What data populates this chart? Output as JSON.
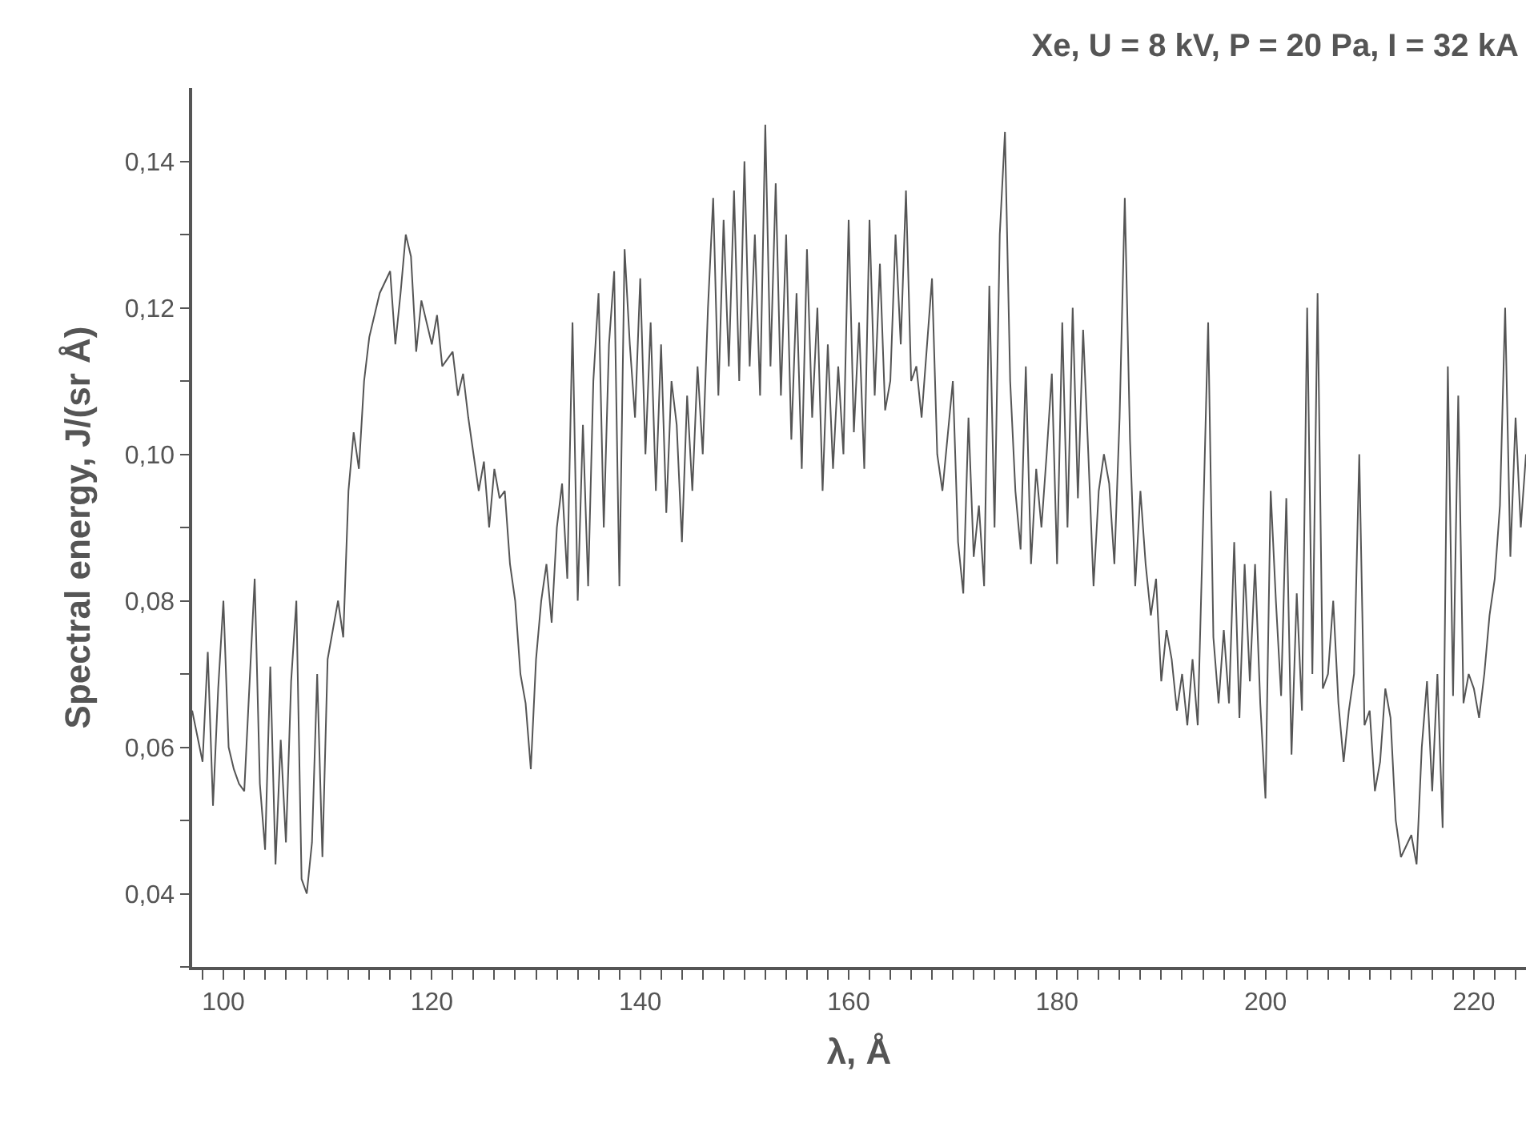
{
  "chart_data": {
    "type": "line",
    "title": "Xe, U = 8 kV, P = 20 Pa, I = 32 kA",
    "xlabel": "λ, Å",
    "ylabel": "Spectral energy, J/(sr Å)",
    "xlim": [
      97,
      225
    ],
    "ylim": [
      0.03,
      0.15
    ],
    "xticks": [
      {
        "value": 98,
        "label": null
      },
      100,
      {
        "value": 102,
        "label": null
      },
      {
        "value": 104,
        "label": null
      },
      {
        "value": 106,
        "label": null
      },
      {
        "value": 108,
        "label": null
      },
      {
        "value": 110,
        "label": null
      },
      {
        "value": 112,
        "label": null
      },
      {
        "value": 114,
        "label": null
      },
      {
        "value": 116,
        "label": null
      },
      {
        "value": 118,
        "label": null
      },
      120,
      {
        "value": 122,
        "label": null
      },
      {
        "value": 124,
        "label": null
      },
      {
        "value": 126,
        "label": null
      },
      {
        "value": 128,
        "label": null
      },
      {
        "value": 130,
        "label": null
      },
      {
        "value": 132,
        "label": null
      },
      {
        "value": 134,
        "label": null
      },
      {
        "value": 136,
        "label": null
      },
      {
        "value": 138,
        "label": null
      },
      140,
      {
        "value": 142,
        "label": null
      },
      {
        "value": 144,
        "label": null
      },
      {
        "value": 146,
        "label": null
      },
      {
        "value": 148,
        "label": null
      },
      {
        "value": 150,
        "label": null
      },
      {
        "value": 152,
        "label": null
      },
      {
        "value": 154,
        "label": null
      },
      {
        "value": 156,
        "label": null
      },
      {
        "value": 158,
        "label": null
      },
      160,
      {
        "value": 162,
        "label": null
      },
      {
        "value": 164,
        "label": null
      },
      {
        "value": 166,
        "label": null
      },
      {
        "value": 168,
        "label": null
      },
      {
        "value": 170,
        "label": null
      },
      {
        "value": 172,
        "label": null
      },
      {
        "value": 174,
        "label": null
      },
      {
        "value": 176,
        "label": null
      },
      {
        "value": 178,
        "label": null
      },
      180,
      {
        "value": 182,
        "label": null
      },
      {
        "value": 184,
        "label": null
      },
      {
        "value": 186,
        "label": null
      },
      {
        "value": 188,
        "label": null
      },
      {
        "value": 190,
        "label": null
      },
      {
        "value": 192,
        "label": null
      },
      {
        "value": 194,
        "label": null
      },
      {
        "value": 196,
        "label": null
      },
      {
        "value": 198,
        "label": null
      },
      200,
      {
        "value": 202,
        "label": null
      },
      {
        "value": 204,
        "label": null
      },
      {
        "value": 206,
        "label": null
      },
      {
        "value": 208,
        "label": null
      },
      {
        "value": 210,
        "label": null
      },
      {
        "value": 212,
        "label": null
      },
      {
        "value": 214,
        "label": null
      },
      {
        "value": 216,
        "label": null
      },
      {
        "value": 218,
        "label": null
      },
      220,
      {
        "value": 222,
        "label": null
      },
      {
        "value": 224,
        "label": null
      }
    ],
    "yticks": [
      {
        "value": 0.03,
        "label": null
      },
      {
        "value": 0.04,
        "label": "0,04"
      },
      {
        "value": 0.05,
        "label": null
      },
      {
        "value": 0.06,
        "label": "0,06"
      },
      {
        "value": 0.07,
        "label": null
      },
      {
        "value": 0.08,
        "label": "0,08"
      },
      {
        "value": 0.09,
        "label": null
      },
      {
        "value": 0.1,
        "label": "0,10"
      },
      {
        "value": 0.11,
        "label": null
      },
      {
        "value": 0.12,
        "label": "0,12"
      },
      {
        "value": 0.13,
        "label": null
      },
      {
        "value": 0.14,
        "label": "0,14"
      }
    ],
    "legend": false,
    "marker": "none",
    "line_style": "solid",
    "series": [
      {
        "color": "#555555",
        "x": [
          97,
          98,
          98.5,
          99,
          99.5,
          100,
          100.5,
          101,
          101.5,
          102,
          103,
          103.5,
          104,
          104.5,
          105,
          105.5,
          106,
          106.5,
          107,
          107.5,
          108,
          108.5,
          109,
          109.5,
          110,
          111,
          111.5,
          112,
          112.5,
          113,
          113.5,
          114,
          115,
          116,
          116.5,
          117,
          117.5,
          118,
          118.5,
          119,
          120,
          120.5,
          121,
          122,
          122.5,
          123,
          123.5,
          124,
          124.5,
          125,
          125.5,
          126,
          126.5,
          127,
          127.5,
          128,
          128.5,
          129,
          129.5,
          130,
          130.5,
          131,
          131.5,
          132,
          132.5,
          133,
          133.5,
          134,
          134.5,
          135,
          135.5,
          136,
          136.5,
          137,
          137.5,
          138,
          138.5,
          139,
          139.5,
          140,
          140.5,
          141,
          141.5,
          142,
          142.5,
          143,
          143.5,
          144,
          144.5,
          145,
          145.5,
          146,
          146.5,
          147,
          147.5,
          148,
          148.5,
          149,
          149.5,
          150,
          150.5,
          151,
          151.5,
          152,
          152.5,
          153,
          153.5,
          154,
          154.5,
          155,
          155.5,
          156,
          156.5,
          157,
          157.5,
          158,
          158.5,
          159,
          159.5,
          160,
          160.5,
          161,
          161.5,
          162,
          162.5,
          163,
          163.5,
          164,
          164.5,
          165,
          165.5,
          166,
          166.5,
          167,
          168,
          168.5,
          169,
          170,
          170.5,
          171,
          171.5,
          172,
          172.5,
          173,
          173.5,
          174,
          174.5,
          175,
          175.5,
          176,
          176.5,
          177,
          177.5,
          178,
          178.5,
          179,
          179.5,
          180,
          180.5,
          181,
          181.5,
          182,
          182.5,
          183,
          183.5,
          184,
          184.5,
          185,
          185.5,
          186,
          186.5,
          187,
          187.5,
          188,
          188.5,
          189,
          189.5,
          190,
          190.5,
          191,
          191.5,
          192,
          192.5,
          193,
          193.5,
          194,
          194.5,
          195,
          195.5,
          196,
          196.5,
          197,
          197.5,
          198,
          198.5,
          199,
          199.5,
          200,
          200.5,
          201,
          201.5,
          202,
          202.5,
          203,
          203.5,
          204,
          204.5,
          205,
          205.5,
          206,
          206.5,
          207,
          207.5,
          208,
          208.5,
          209,
          209.5,
          210,
          210.5,
          211,
          211.5,
          212,
          212.5,
          213,
          214,
          214.5,
          215,
          215.5,
          216,
          216.5,
          217,
          217.5,
          218,
          218.5,
          219,
          219.5,
          220,
          220.5,
          221,
          221.5,
          222,
          222.5,
          223,
          223.5,
          224,
          224.5,
          225
        ],
        "values": [
          0.065,
          0.058,
          0.073,
          0.052,
          0.068,
          0.08,
          0.06,
          0.057,
          0.055,
          0.054,
          0.083,
          0.055,
          0.046,
          0.071,
          0.044,
          0.061,
          0.047,
          0.069,
          0.08,
          0.042,
          0.04,
          0.047,
          0.07,
          0.045,
          0.072,
          0.08,
          0.075,
          0.095,
          0.103,
          0.098,
          0.11,
          0.116,
          0.122,
          0.125,
          0.115,
          0.122,
          0.13,
          0.127,
          0.114,
          0.121,
          0.115,
          0.119,
          0.112,
          0.114,
          0.108,
          0.111,
          0.105,
          0.1,
          0.095,
          0.099,
          0.09,
          0.098,
          0.094,
          0.095,
          0.085,
          0.08,
          0.07,
          0.066,
          0.057,
          0.072,
          0.08,
          0.085,
          0.077,
          0.09,
          0.096,
          0.083,
          0.118,
          0.08,
          0.104,
          0.082,
          0.11,
          0.122,
          0.09,
          0.115,
          0.125,
          0.082,
          0.128,
          0.115,
          0.105,
          0.124,
          0.1,
          0.118,
          0.095,
          0.115,
          0.092,
          0.11,
          0.104,
          0.088,
          0.108,
          0.095,
          0.112,
          0.1,
          0.12,
          0.135,
          0.108,
          0.132,
          0.112,
          0.136,
          0.11,
          0.14,
          0.112,
          0.13,
          0.108,
          0.145,
          0.112,
          0.137,
          0.108,
          0.13,
          0.102,
          0.122,
          0.098,
          0.128,
          0.105,
          0.12,
          0.095,
          0.115,
          0.098,
          0.112,
          0.1,
          0.132,
          0.103,
          0.118,
          0.098,
          0.132,
          0.108,
          0.126,
          0.106,
          0.11,
          0.13,
          0.115,
          0.136,
          0.11,
          0.112,
          0.105,
          0.124,
          0.1,
          0.095,
          0.11,
          0.088,
          0.081,
          0.105,
          0.086,
          0.093,
          0.082,
          0.123,
          0.09,
          0.13,
          0.144,
          0.11,
          0.095,
          0.087,
          0.112,
          0.085,
          0.098,
          0.09,
          0.1,
          0.111,
          0.085,
          0.118,
          0.09,
          0.12,
          0.094,
          0.117,
          0.1,
          0.082,
          0.095,
          0.1,
          0.096,
          0.085,
          0.105,
          0.135,
          0.102,
          0.082,
          0.095,
          0.085,
          0.078,
          0.083,
          0.069,
          0.076,
          0.072,
          0.065,
          0.07,
          0.063,
          0.072,
          0.063,
          0.09,
          0.118,
          0.075,
          0.066,
          0.076,
          0.066,
          0.088,
          0.064,
          0.085,
          0.069,
          0.085,
          0.066,
          0.053,
          0.095,
          0.08,
          0.067,
          0.094,
          0.059,
          0.081,
          0.065,
          0.12,
          0.07,
          0.122,
          0.068,
          0.07,
          0.08,
          0.066,
          0.058,
          0.065,
          0.07,
          0.1,
          0.063,
          0.065,
          0.054,
          0.058,
          0.068,
          0.064,
          0.05,
          0.045,
          0.048,
          0.044,
          0.06,
          0.069,
          0.054,
          0.07,
          0.049,
          0.112,
          0.067,
          0.108,
          0.066,
          0.07,
          0.068,
          0.064,
          0.07,
          0.078,
          0.083,
          0.093,
          0.12,
          0.086,
          0.105,
          0.09,
          0.1
        ]
      }
    ]
  }
}
